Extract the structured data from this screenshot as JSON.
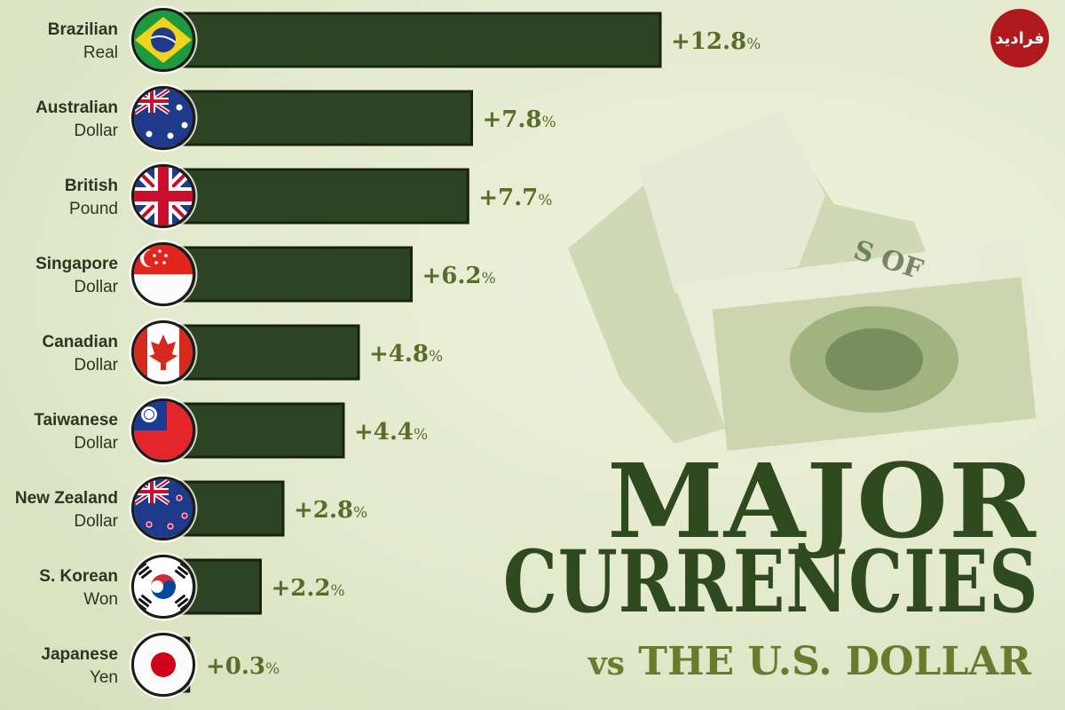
{
  "chart_data": {
    "type": "bar",
    "orientation": "horizontal",
    "title": "MAJOR CURRENCIES",
    "subtitle_prefix": "vs",
    "subtitle_main": "THE U.S. DOLLAR",
    "categories": [
      [
        "Brazilian",
        "Real"
      ],
      [
        "Australian",
        "Dollar"
      ],
      [
        "British",
        "Pound"
      ],
      [
        "Singapore",
        "Dollar"
      ],
      [
        "Canadian",
        "Dollar"
      ],
      [
        "Taiwanese",
        "Dollar"
      ],
      [
        "New Zealand",
        "Dollar"
      ],
      [
        "S. Korean",
        "Won"
      ],
      [
        "Japanese",
        "Yen"
      ]
    ],
    "values": [
      12.8,
      7.8,
      7.7,
      6.2,
      4.8,
      4.4,
      2.8,
      2.2,
      0.3
    ],
    "value_labels": [
      "+12.8",
      "+7.8",
      "+7.7",
      "+6.2",
      "+4.8",
      "+4.4",
      "+2.8",
      "+2.2",
      "+0.3"
    ],
    "unit": "%",
    "flags": [
      "brazil-flag",
      "australia-flag",
      "uk-flag",
      "singapore-flag",
      "canada-flag",
      "taiwan-flag",
      "new-zealand-flag",
      "south-korea-flag",
      "japan-flag"
    ],
    "colors": {
      "bar": "#2c4422",
      "bar_edge": "#16240f",
      "value": "#5a6b2a",
      "title": "#2f4a1f"
    }
  },
  "logo_text": "فرادید"
}
